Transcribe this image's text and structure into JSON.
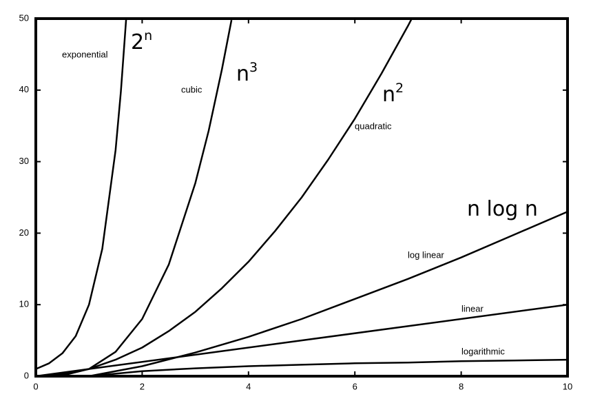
{
  "chart_data": {
    "type": "line",
    "xlim": [
      0,
      10
    ],
    "ylim": [
      0,
      50
    ],
    "xticks": [
      0,
      2,
      4,
      6,
      8,
      10
    ],
    "yticks": [
      0,
      10,
      20,
      30,
      40,
      50
    ],
    "color": "#000000",
    "series": [
      {
        "name": "exponential",
        "x": [
          0,
          0.25,
          0.5,
          0.75,
          1,
          1.25,
          1.5,
          1.6,
          1.7
        ],
        "values": [
          1,
          1.8,
          3.2,
          5.6,
          10,
          17.8,
          31.6,
          39.8,
          50
        ]
      },
      {
        "name": "cubic",
        "x": [
          0,
          0.5,
          1,
          1.5,
          2,
          2.5,
          3,
          3.25,
          3.5,
          3.68
        ],
        "values": [
          0,
          0.1,
          1,
          3.4,
          8,
          15.6,
          27,
          34.3,
          42.9,
          49.8
        ]
      },
      {
        "name": "quadratic",
        "x": [
          0,
          0.5,
          1,
          1.5,
          2,
          2.5,
          3,
          3.5,
          4,
          4.5,
          5,
          5.5,
          6,
          6.5,
          7,
          7.07
        ],
        "values": [
          0,
          0.3,
          1,
          2.3,
          4,
          6.3,
          9,
          12.3,
          16,
          20.3,
          25,
          30.3,
          36,
          42.3,
          49,
          50
        ]
      },
      {
        "name": "log linear",
        "x": [
          0,
          1,
          2,
          3,
          4,
          5,
          6,
          7,
          8,
          9,
          10
        ],
        "values": [
          0,
          0,
          1.4,
          3.3,
          5.5,
          8,
          10.8,
          13.6,
          16.6,
          19.8,
          23
        ]
      },
      {
        "name": "linear",
        "x": [
          0,
          10
        ],
        "values": [
          0,
          10
        ]
      },
      {
        "name": "logarithmic",
        "x": [
          0,
          1,
          2,
          3,
          4,
          5,
          6,
          7,
          8,
          9,
          10
        ],
        "values": [
          0,
          0,
          0.7,
          1.1,
          1.4,
          1.6,
          1.8,
          1.9,
          2.1,
          2.2,
          2.3
        ]
      }
    ],
    "big_labels": [
      {
        "text": "2",
        "sup": "n"
      },
      {
        "text": "n",
        "sup": "3"
      },
      {
        "text": "n",
        "sup": "2"
      },
      {
        "text": "n log n"
      }
    ]
  }
}
